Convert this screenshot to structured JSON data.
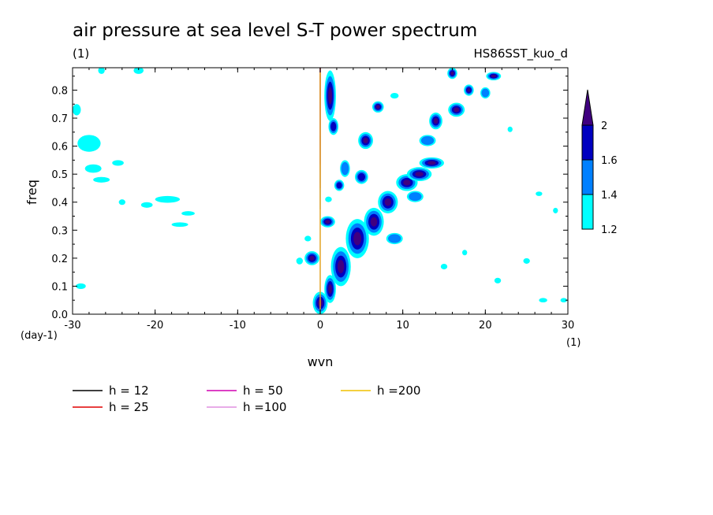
{
  "title": "air pressure at sea level S-T power spectrum",
  "subtitle_left": "(1)",
  "subtitle_right": "HS86SST_kuo_d",
  "chart_data": {
    "type": "heatmap",
    "xlabel": "wvn",
    "ylabel": "freq",
    "x_unit_label": "(1)",
    "y_unit_label": "(day-1)",
    "xlim": [
      -30,
      30
    ],
    "ylim": [
      0,
      0.88
    ],
    "x_ticks": [
      -30,
      -20,
      -10,
      0,
      10,
      20,
      30
    ],
    "x_tick_labels": [
      "-30",
      "-20",
      "-10",
      "0",
      "10",
      "20",
      "30"
    ],
    "y_ticks": [
      0,
      0.1,
      0.2,
      0.3,
      0.4,
      0.5,
      0.6,
      0.7,
      0.8
    ],
    "y_tick_labels": [
      "0.0",
      "0.1",
      "0.2",
      "0.3",
      "0.4",
      "0.5",
      "0.6",
      "0.7",
      "0.8"
    ],
    "colorbar": {
      "levels": [
        1.2,
        1.4,
        1.6,
        2
      ],
      "labels": [
        "1.2",
        "1.4",
        "1.6",
        "2"
      ],
      "colors": [
        "#00ffff",
        "#0080ff",
        "#0000c0",
        "#400080"
      ]
    },
    "dispersion_curves": [
      {
        "name": "h = 12",
        "h": 12,
        "color": "#000000"
      },
      {
        "name": "h = 25",
        "h": 25,
        "color": "#e00000"
      },
      {
        "name": "h = 50",
        "h": 50,
        "color": "#d000b0"
      },
      {
        "name": "h =100",
        "h": 100,
        "color": "#e090e0"
      },
      {
        "name": "h =200",
        "h": 200,
        "color": "#f0c000"
      }
    ],
    "spectral_blobs": [
      {
        "x": 1.2,
        "y": 0.78,
        "rx": 0.7,
        "ry": 0.09,
        "level": 3
      },
      {
        "x": 1.6,
        "y": 0.67,
        "rx": 0.6,
        "ry": 0.03,
        "level": 2
      },
      {
        "x": 0.9,
        "y": 0.33,
        "rx": 0.9,
        "ry": 0.02,
        "level": 3
      },
      {
        "x": -1.0,
        "y": 0.2,
        "rx": 0.9,
        "ry": 0.025,
        "level": 3
      },
      {
        "x": 0.0,
        "y": 0.04,
        "rx": 0.9,
        "ry": 0.04,
        "level": 3
      },
      {
        "x": 1.2,
        "y": 0.09,
        "rx": 0.7,
        "ry": 0.05,
        "level": 3
      },
      {
        "x": 2.5,
        "y": 0.17,
        "rx": 1.2,
        "ry": 0.07,
        "level": 3
      },
      {
        "x": 4.5,
        "y": 0.27,
        "rx": 1.4,
        "ry": 0.07,
        "level": 3
      },
      {
        "x": 6.5,
        "y": 0.33,
        "rx": 1.2,
        "ry": 0.05,
        "level": 3
      },
      {
        "x": 8.2,
        "y": 0.4,
        "rx": 1.2,
        "ry": 0.04,
        "level": 3
      },
      {
        "x": 10.5,
        "y": 0.47,
        "rx": 1.3,
        "ry": 0.03,
        "level": 3
      },
      {
        "x": 12.0,
        "y": 0.5,
        "rx": 1.5,
        "ry": 0.025,
        "level": 3
      },
      {
        "x": 13.5,
        "y": 0.54,
        "rx": 1.5,
        "ry": 0.02,
        "level": 3
      },
      {
        "x": 5.0,
        "y": 0.49,
        "rx": 0.8,
        "ry": 0.025,
        "level": 2
      },
      {
        "x": 5.5,
        "y": 0.62,
        "rx": 0.9,
        "ry": 0.03,
        "level": 3
      },
      {
        "x": 7.0,
        "y": 0.74,
        "rx": 0.7,
        "ry": 0.02,
        "level": 3
      },
      {
        "x": 14.0,
        "y": 0.69,
        "rx": 0.8,
        "ry": 0.03,
        "level": 3
      },
      {
        "x": 16.5,
        "y": 0.73,
        "rx": 1.0,
        "ry": 0.025,
        "level": 3
      },
      {
        "x": 18.0,
        "y": 0.8,
        "rx": 0.6,
        "ry": 0.02,
        "level": 3
      },
      {
        "x": 21.0,
        "y": 0.85,
        "rx": 0.9,
        "ry": 0.015,
        "level": 3
      },
      {
        "x": 16.0,
        "y": 0.86,
        "rx": 0.6,
        "ry": 0.02,
        "level": 3
      },
      {
        "x": 2.3,
        "y": 0.46,
        "rx": 0.6,
        "ry": 0.02,
        "level": 2
      },
      {
        "x": 3.0,
        "y": 0.52,
        "rx": 0.6,
        "ry": 0.03,
        "level": 1
      },
      {
        "x": 9.0,
        "y": 0.27,
        "rx": 1.0,
        "ry": 0.02,
        "level": 1
      },
      {
        "x": 11.5,
        "y": 0.42,
        "rx": 1.0,
        "ry": 0.02,
        "level": 1
      },
      {
        "x": 13.0,
        "y": 0.62,
        "rx": 1.0,
        "ry": 0.02,
        "level": 1
      },
      {
        "x": 20.0,
        "y": 0.79,
        "rx": 0.6,
        "ry": 0.02,
        "level": 1
      },
      {
        "x": -28.0,
        "y": 0.61,
        "rx": 1.4,
        "ry": 0.03,
        "level": 0
      },
      {
        "x": -29.5,
        "y": 0.73,
        "rx": 0.5,
        "ry": 0.02,
        "level": 0
      },
      {
        "x": -27.5,
        "y": 0.52,
        "rx": 1.0,
        "ry": 0.015,
        "level": 0
      },
      {
        "x": -26.5,
        "y": 0.48,
        "rx": 1.0,
        "ry": 0.01,
        "level": 0
      },
      {
        "x": -24.5,
        "y": 0.54,
        "rx": 0.7,
        "ry": 0.01,
        "level": 0
      },
      {
        "x": -18.5,
        "y": 0.41,
        "rx": 1.5,
        "ry": 0.012,
        "level": 0
      },
      {
        "x": -21.0,
        "y": 0.39,
        "rx": 0.7,
        "ry": 0.01,
        "level": 0
      },
      {
        "x": -24.0,
        "y": 0.4,
        "rx": 0.4,
        "ry": 0.01,
        "level": 0
      },
      {
        "x": -17.0,
        "y": 0.32,
        "rx": 1.0,
        "ry": 0.008,
        "level": 0
      },
      {
        "x": -16.0,
        "y": 0.36,
        "rx": 0.8,
        "ry": 0.008,
        "level": 0
      },
      {
        "x": -29.0,
        "y": 0.1,
        "rx": 0.6,
        "ry": 0.01,
        "level": 0
      },
      {
        "x": -26.5,
        "y": 0.87,
        "rx": 0.4,
        "ry": 0.012,
        "level": 0
      },
      {
        "x": -22.0,
        "y": 0.87,
        "rx": 0.6,
        "ry": 0.012,
        "level": 0
      },
      {
        "x": -1.5,
        "y": 0.27,
        "rx": 0.4,
        "ry": 0.01,
        "level": 0
      },
      {
        "x": -2.5,
        "y": 0.19,
        "rx": 0.4,
        "ry": 0.012,
        "level": 0
      },
      {
        "x": 1.0,
        "y": 0.41,
        "rx": 0.4,
        "ry": 0.01,
        "level": 0
      },
      {
        "x": 21.5,
        "y": 0.12,
        "rx": 0.4,
        "ry": 0.01,
        "level": 0
      },
      {
        "x": 25.0,
        "y": 0.19,
        "rx": 0.4,
        "ry": 0.01,
        "level": 0
      },
      {
        "x": 27.0,
        "y": 0.05,
        "rx": 0.5,
        "ry": 0.008,
        "level": 0
      },
      {
        "x": 29.5,
        "y": 0.05,
        "rx": 0.4,
        "ry": 0.008,
        "level": 0
      },
      {
        "x": 26.5,
        "y": 0.43,
        "rx": 0.4,
        "ry": 0.008,
        "level": 0
      },
      {
        "x": 28.5,
        "y": 0.37,
        "rx": 0.3,
        "ry": 0.01,
        "level": 0
      },
      {
        "x": 15.0,
        "y": 0.17,
        "rx": 0.4,
        "ry": 0.01,
        "level": 0
      },
      {
        "x": 17.5,
        "y": 0.22,
        "rx": 0.3,
        "ry": 0.01,
        "level": 0
      },
      {
        "x": 23.0,
        "y": 0.66,
        "rx": 0.3,
        "ry": 0.01,
        "level": 0
      },
      {
        "x": 9.0,
        "y": 0.78,
        "rx": 0.5,
        "ry": 0.01,
        "level": 0
      }
    ]
  }
}
